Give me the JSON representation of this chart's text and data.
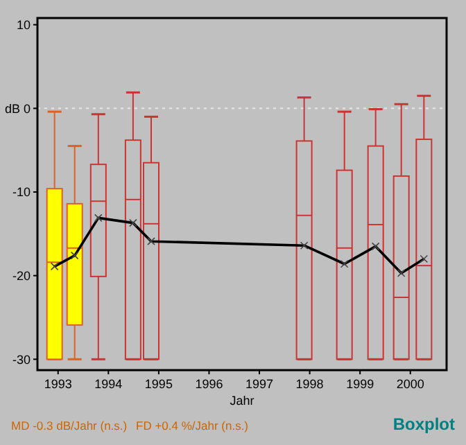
{
  "chart_data": {
    "type": "box",
    "title": "Boxplot",
    "xlabel": "Jahr",
    "annotations": [
      "MD -0.3 dB/Jahr (n.s.)",
      "FD +0.4 %/Jahr (n.s.)"
    ],
    "xlim": [
      1992.59,
      2000.72
    ],
    "xticks": [
      1993,
      1994,
      1995,
      1996,
      1997,
      1998,
      1999,
      2000
    ],
    "ylim": [
      -31.3,
      10.8
    ],
    "yticks": [
      10,
      {
        "value": 0,
        "label": "dB 0"
      },
      -10,
      -20,
      -30
    ],
    "ref_lines": [
      {
        "axis": "y",
        "value": 0,
        "color": "#e8e8e8",
        "line_style": "dotted"
      }
    ],
    "series": [
      {
        "color": "#ffff00",
        "x": [
          1992.93,
          1993.33
        ],
        "boxes": [
          {
            "low": -30,
            "q1": -30,
            "median": -18.4,
            "q3": -9.6,
            "high": -0.4
          },
          {
            "low": -30,
            "q1": -25.9,
            "median": -16.7,
            "q3": -11.4,
            "high": -4.5
          }
        ]
      },
      {
        "color": "#cc3333",
        "x": [
          1993.8,
          1994.49,
          1994.85,
          1997.89,
          1998.69,
          1999.31,
          1999.82,
          2000.27
        ],
        "boxes": [
          {
            "low": -30,
            "q1": -20.1,
            "median": -11.1,
            "q3": -6.7,
            "high": -0.7
          },
          {
            "low": -30,
            "q1": -30,
            "median": -10.9,
            "q3": -3.8,
            "high": 1.9
          },
          {
            "low": -30,
            "q1": -30,
            "median": -13.8,
            "q3": -6.5,
            "high": -1.0
          },
          {
            "low": -30,
            "q1": -30,
            "median": -12.8,
            "q3": -3.9,
            "high": 1.3
          },
          {
            "low": -30,
            "q1": -30,
            "median": -16.7,
            "q3": -7.4,
            "high": -0.4
          },
          {
            "low": -30,
            "q1": -30,
            "median": -13.9,
            "q3": -4.5,
            "high": -0.1
          },
          {
            "low": -30,
            "q1": -30,
            "median": -22.6,
            "q3": -8.1,
            "high": 0.5
          },
          {
            "low": -30,
            "q1": -30,
            "median": -18.8,
            "q3": -3.7,
            "high": 1.5
          }
        ]
      },
      {
        "type": "line",
        "color": "#000000",
        "marker": "cross",
        "x": [
          1992.93,
          1993.33,
          1993.8,
          1994.49,
          1994.85,
          1997.89,
          1998.69,
          1999.31,
          1999.82,
          2000.27
        ],
        "values": [
          -18.9,
          -17.6,
          -13.1,
          -13.7,
          -15.9,
          -16.4,
          -18.6,
          -16.5,
          -19.7,
          -18.0
        ]
      }
    ]
  }
}
